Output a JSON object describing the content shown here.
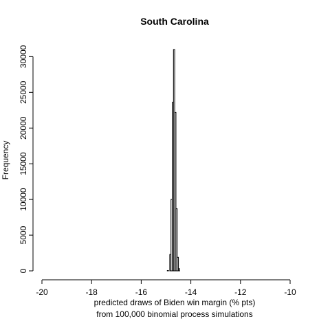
{
  "chart_data": {
    "type": "bar",
    "title": "South Carolina",
    "xlabel": "predicted draws of Biden win margin (% pts)",
    "xlabel_line2": "from 100,000 binomial process simulations",
    "ylabel": "Frequency",
    "xlim": [
      -20,
      -10
    ],
    "ylim": [
      0,
      31000
    ],
    "x_ticks": [
      -20,
      -18,
      -16,
      -14,
      -12,
      -10
    ],
    "y_ticks": [
      0,
      5000,
      10000,
      15000,
      20000,
      25000,
      30000
    ],
    "bin_width": 0.05,
    "bins": [
      {
        "x0": -14.95,
        "count": 50
      },
      {
        "x0": -14.85,
        "count": 2300
      },
      {
        "x0": -14.8,
        "count": 10000
      },
      {
        "x0": -14.75,
        "count": 23600
      },
      {
        "x0": -14.7,
        "count": 31000
      },
      {
        "x0": -14.65,
        "count": 22200
      },
      {
        "x0": -14.6,
        "count": 8700
      },
      {
        "x0": -14.55,
        "count": 1900
      },
      {
        "x0": -14.5,
        "count": 300
      }
    ]
  }
}
